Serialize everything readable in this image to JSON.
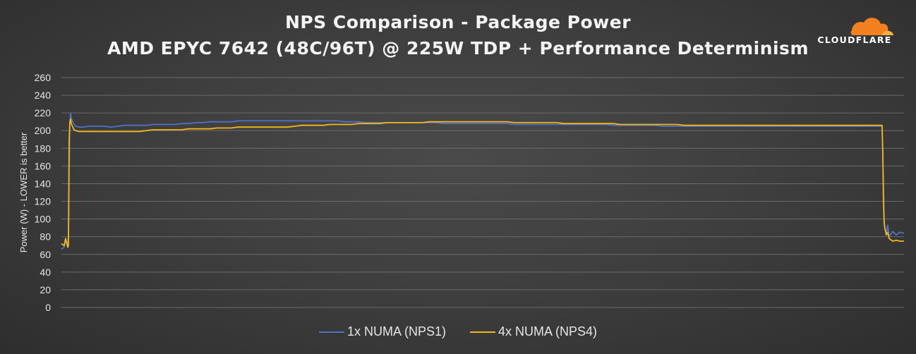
{
  "chart_data": {
    "type": "line",
    "title": "NPS Comparison - Package Power",
    "subtitle": "AMD EPYC 7642 (48C/96T) @ 225W TDP + Performance Determinism",
    "xlabel": "",
    "ylabel": "Power (W) - LOWER is better",
    "ylim": [
      0,
      260
    ],
    "yticks": [
      "0",
      "20",
      "40",
      "60",
      "80",
      "100",
      "120",
      "140",
      "160",
      "180",
      "200",
      "220",
      "240",
      "260"
    ],
    "grid": true,
    "legend_position": "bottom",
    "series": [
      {
        "name": "1x NUMA (NPS1)",
        "color": "#4f72c4",
        "x": [
          0,
          4,
          6,
          8,
          9,
          10,
          11,
          12,
          13,
          14,
          16,
          18,
          20,
          25,
          30,
          40,
          50,
          60,
          70,
          80,
          90,
          100,
          110,
          120,
          130,
          140,
          150,
          160,
          170,
          180,
          190,
          200,
          210,
          220,
          230,
          240,
          250,
          260,
          270,
          280,
          290,
          300,
          310,
          320,
          330,
          340,
          350,
          360,
          370,
          380,
          390,
          400,
          410,
          420,
          430,
          440,
          450,
          460,
          470,
          480,
          490,
          500,
          510,
          520,
          530,
          540,
          550,
          560,
          570,
          580,
          590,
          600,
          610,
          620,
          630,
          640,
          650,
          660,
          670,
          680,
          690,
          700,
          710,
          720,
          730,
          740,
          750,
          760,
          770,
          780,
          790,
          800,
          810,
          820,
          830,
          840,
          850,
          860,
          870,
          880,
          890,
          900,
          910,
          920,
          930,
          940,
          950,
          960,
          970,
          980,
          990,
          1000,
          1010,
          1020,
          1030,
          1040,
          1050,
          1060,
          1070,
          1080,
          1090,
          1100,
          1110,
          1120,
          1130,
          1140,
          1150,
          1160,
          1161,
          1162,
          1163,
          1164,
          1166,
          1168,
          1170,
          1175,
          1180,
          1185,
          1191
        ],
        "y": [
          66,
          68,
          76,
          70,
          74,
          80,
          150,
          205,
          220,
          214,
          210,
          207,
          205,
          204,
          204,
          205,
          205,
          205,
          204,
          205,
          206,
          206,
          206,
          206,
          207,
          207,
          207,
          207,
          208,
          208,
          209,
          209,
          210,
          210,
          210,
          210,
          211,
          211,
          211,
          211,
          211,
          211,
          211,
          211,
          211,
          211,
          211,
          211,
          211,
          211,
          211,
          210,
          210,
          210,
          209,
          209,
          209,
          209,
          209,
          209,
          209,
          209,
          209,
          209,
          209,
          208,
          208,
          208,
          208,
          208,
          208,
          208,
          208,
          208,
          208,
          207,
          207,
          207,
          207,
          207,
          207,
          207,
          207,
          207,
          207,
          207,
          207,
          207,
          207,
          206,
          206,
          206,
          206,
          206,
          206,
          206,
          205,
          205,
          205,
          205,
          205,
          205,
          205,
          205,
          205,
          205,
          205,
          205,
          205,
          205,
          205,
          205,
          205,
          205,
          205,
          205,
          205,
          205,
          205,
          205,
          205,
          205,
          205,
          205,
          205,
          205,
          205,
          205,
          180,
          140,
          100,
          88,
          84,
          93,
          80,
          86,
          82,
          85,
          84
        ]
      },
      {
        "name": "4x NUMA (NPS4)",
        "color": "#f2b61a",
        "x": [
          0,
          4,
          6,
          8,
          9,
          10,
          11,
          12,
          13,
          14,
          16,
          18,
          20,
          25,
          30,
          40,
          50,
          60,
          70,
          80,
          90,
          100,
          110,
          120,
          130,
          140,
          150,
          160,
          170,
          180,
          190,
          200,
          210,
          220,
          230,
          240,
          250,
          260,
          270,
          280,
          290,
          300,
          310,
          320,
          330,
          340,
          350,
          360,
          370,
          380,
          390,
          400,
          410,
          420,
          430,
          440,
          450,
          460,
          470,
          480,
          490,
          500,
          510,
          520,
          530,
          540,
          550,
          560,
          570,
          580,
          590,
          600,
          610,
          620,
          630,
          640,
          650,
          660,
          670,
          680,
          690,
          700,
          710,
          720,
          730,
          740,
          750,
          760,
          770,
          780,
          790,
          800,
          810,
          820,
          830,
          840,
          850,
          860,
          870,
          880,
          890,
          900,
          910,
          920,
          930,
          940,
          950,
          960,
          970,
          980,
          990,
          1000,
          1010,
          1020,
          1030,
          1040,
          1050,
          1060,
          1070,
          1080,
          1090,
          1100,
          1110,
          1120,
          1130,
          1140,
          1150,
          1160,
          1161,
          1162,
          1163,
          1164,
          1166,
          1168,
          1170,
          1175,
          1180,
          1185,
          1191
        ],
        "y": [
          72,
          70,
          78,
          72,
          68,
          70,
          190,
          210,
          213,
          208,
          204,
          201,
          200,
          199,
          199,
          199,
          199,
          199,
          199,
          199,
          199,
          199,
          199,
          200,
          201,
          201,
          201,
          201,
          201,
          202,
          202,
          202,
          202,
          203,
          203,
          203,
          204,
          204,
          204,
          204,
          204,
          204,
          204,
          204,
          205,
          206,
          206,
          206,
          206,
          207,
          207,
          207,
          207,
          208,
          208,
          208,
          208,
          209,
          209,
          209,
          209,
          209,
          209,
          210,
          210,
          210,
          210,
          210,
          210,
          210,
          210,
          210,
          210,
          210,
          210,
          209,
          209,
          209,
          209,
          209,
          209,
          209,
          208,
          208,
          208,
          208,
          208,
          208,
          208,
          208,
          207,
          207,
          207,
          207,
          207,
          207,
          207,
          207,
          207,
          206,
          206,
          206,
          206,
          206,
          206,
          206,
          206,
          206,
          206,
          206,
          206,
          206,
          206,
          206,
          206,
          206,
          206,
          206,
          206,
          206,
          206,
          206,
          206,
          206,
          206,
          206,
          206,
          206,
          175,
          120,
          95,
          90,
          82,
          85,
          78,
          75,
          76,
          75,
          75
        ]
      }
    ]
  },
  "logo": {
    "text": "CLOUDFLARE",
    "cloud_color_main": "#f38020",
    "cloud_color_light": "#faae40"
  }
}
